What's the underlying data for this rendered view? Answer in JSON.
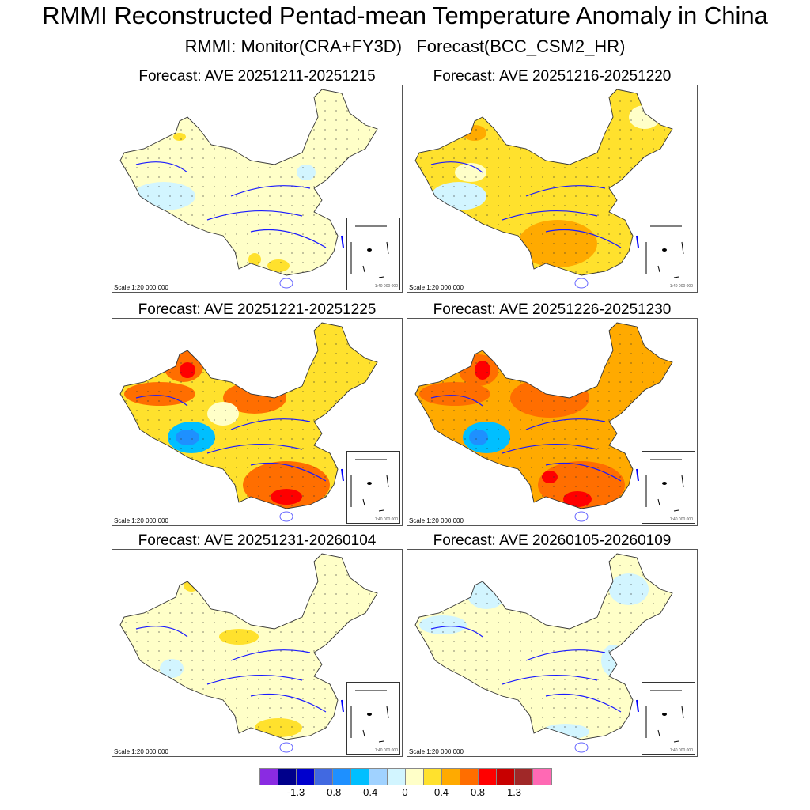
{
  "title": "RMMI Reconstructed Pentad-mean Temperature Anomaly in China",
  "subtitle": "RMMI: Monitor(CRA+FY3D)   Forecast(BCC_CSM2_HR)",
  "scale_label": "Scale 1:20 000 000",
  "inset_scale_label": "1:40 000 000",
  "panels": [
    {
      "title": "Forecast: AVE 20251211-20251215",
      "base_level": 0.1
    },
    {
      "title": "Forecast: AVE 20251216-20251220",
      "base_level": 0.3
    },
    {
      "title": "Forecast: AVE 20251221-20251225",
      "base_level": 0.5
    },
    {
      "title": "Forecast: AVE 20251226-20251230",
      "base_level": 0.6
    },
    {
      "title": "Forecast: AVE 20251231-20260104",
      "base_level": 0.1
    },
    {
      "title": "Forecast: AVE 20260105-20260109",
      "base_level": 0.05
    }
  ],
  "colorbar": {
    "colors": [
      "#8a2be2",
      "#00008b",
      "#0000cd",
      "#4169e1",
      "#1e90ff",
      "#00bfff",
      "#a0d2ff",
      "#d2f5ff",
      "#ffffc8",
      "#ffe12d",
      "#ffaa00",
      "#ff6e00",
      "#ff0000",
      "#c80000",
      "#a02828",
      "#ff69b4"
    ],
    "labels": [
      "-1.3",
      "-0.8",
      "-0.4",
      "0",
      "0.4",
      "0.8",
      "1.3"
    ]
  }
}
